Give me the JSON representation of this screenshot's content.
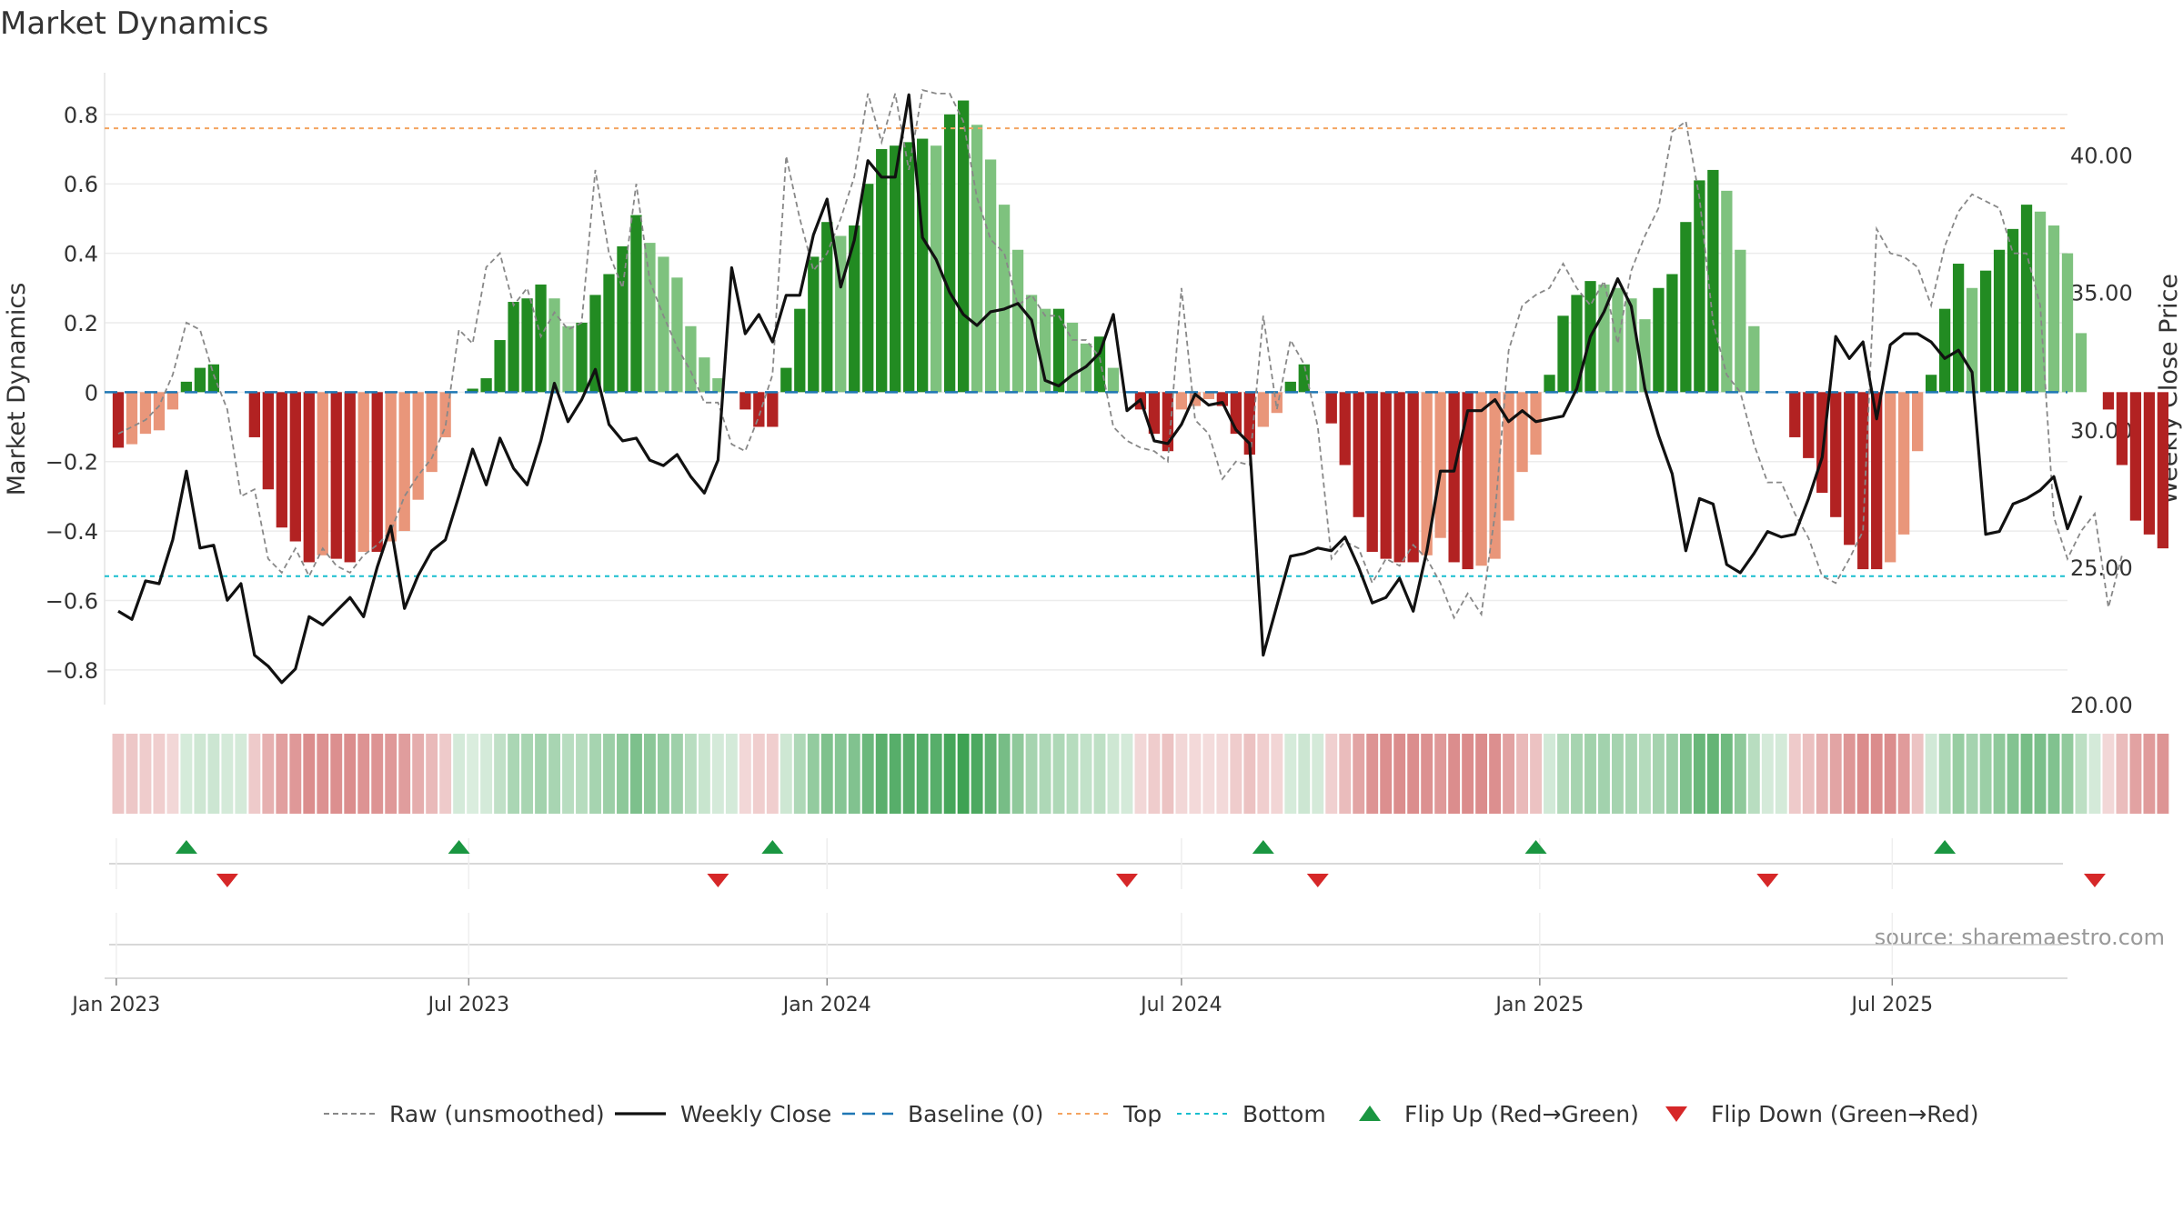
{
  "chart_data": {
    "type": "bar",
    "title": "Market Dynamics",
    "ylabel": "Market Dynamics",
    "y2label": "Weekly Close Price",
    "source_text": "source: sharemaestro.com",
    "ylim": [
      -0.9,
      0.92
    ],
    "y2lim": [
      20.0,
      43.0
    ],
    "yticks": [
      "0.8",
      "0.6",
      "0.4",
      "0.2",
      "0",
      "−0.2",
      "−0.4",
      "−0.6",
      "−0.8"
    ],
    "ytick_values": [
      0.8,
      0.6,
      0.4,
      0.2,
      0,
      -0.2,
      -0.4,
      -0.6,
      -0.8
    ],
    "y2ticks": [
      "40.00",
      "35.00",
      "30.00",
      "25.00",
      "20.00"
    ],
    "y2tick_values": [
      40,
      35,
      30,
      25,
      20
    ],
    "x_start": "2023-01-02",
    "x_range": [
      "2022-12-26",
      "2025-09-29"
    ],
    "xticks": [
      "Jan 2023",
      "Jul 2023",
      "Jan 2024",
      "Jul 2024",
      "Jan 2025",
      "Jul 2025"
    ],
    "xtick_dates": [
      "2023-01-01",
      "2023-07-01",
      "2024-01-01",
      "2024-07-01",
      "2025-01-01",
      "2025-07-01"
    ],
    "top_level": 0.76,
    "bottom_level": -0.53,
    "baseline": 0,
    "grid": true,
    "legend_position": "bottom",
    "colors": {
      "strong_green": "#228b22",
      "light_green": "#7ec27e",
      "strong_red": "#b22222",
      "light_red": "#e9967a",
      "close": "#111111",
      "raw": "#888888",
      "baseline": "#1f77b4",
      "top": "#f4a460",
      "bottom": "#17becf",
      "flip_up": "#1a9641",
      "flip_down": "#d62728"
    },
    "bar_values": [
      -0.16,
      -0.15,
      -0.12,
      -0.11,
      -0.05,
      0.03,
      0.07,
      0.08,
      0,
      0,
      -0.13,
      -0.28,
      -0.39,
      -0.43,
      -0.49,
      -0.47,
      -0.48,
      -0.49,
      -0.46,
      -0.46,
      -0.43,
      -0.4,
      -0.31,
      -0.23,
      -0.13,
      0,
      0.01,
      0.04,
      0.15,
      0.26,
      0.27,
      0.31,
      0.27,
      0.19,
      0.2,
      0.28,
      0.34,
      0.42,
      0.51,
      0.43,
      0.39,
      0.33,
      0.19,
      0.1,
      0.04,
      0,
      -0.05,
      -0.1,
      -0.1,
      0.07,
      0.24,
      0.39,
      0.49,
      0.45,
      0.48,
      0.6,
      0.7,
      0.71,
      0.72,
      0.73,
      0.71,
      0.8,
      0.84,
      0.77,
      0.67,
      0.54,
      0.41,
      0.28,
      0.24,
      0.24,
      0.2,
      0.14,
      0.16,
      0.07,
      0,
      -0.05,
      -0.12,
      -0.17,
      -0.05,
      -0.04,
      -0.02,
      -0.04,
      -0.12,
      -0.18,
      -0.1,
      -0.06,
      0.03,
      0.08,
      0,
      -0.09,
      -0.21,
      -0.36,
      -0.46,
      -0.48,
      -0.49,
      -0.49,
      -0.47,
      -0.42,
      -0.49,
      -0.51,
      -0.5,
      -0.48,
      -0.37,
      -0.23,
      -0.18,
      0.05,
      0.22,
      0.28,
      0.32,
      0.31,
      0.3,
      0.27,
      0.21,
      0.3,
      0.34,
      0.49,
      0.61,
      0.64,
      0.58,
      0.41,
      0.19,
      0,
      0,
      -0.13,
      -0.19,
      -0.29,
      -0.36,
      -0.44,
      -0.51,
      -0.51,
      -0.49,
      -0.41,
      -0.17,
      0.05,
      0.24,
      0.37,
      0.3,
      0.35,
      0.41,
      0.47,
      0.54,
      0.52,
      0.48,
      0.4,
      0.17,
      0,
      -0.05,
      -0.21,
      -0.37,
      -0.41,
      -0.45
    ],
    "raw_values": [
      -0.12,
      -0.1,
      -0.08,
      -0.04,
      0.05,
      0.2,
      0.18,
      0.05,
      -0.05,
      -0.3,
      -0.28,
      -0.48,
      -0.52,
      -0.45,
      -0.53,
      -0.45,
      -0.5,
      -0.52,
      -0.47,
      -0.44,
      -0.4,
      -0.3,
      -0.24,
      -0.19,
      -0.1,
      0.18,
      0.14,
      0.36,
      0.4,
      0.25,
      0.3,
      0.16,
      0.23,
      0.18,
      0.2,
      0.64,
      0.4,
      0.3,
      0.6,
      0.32,
      0.22,
      0.13,
      0.06,
      -0.03,
      -0.03,
      -0.15,
      -0.17,
      -0.07,
      0.05,
      0.68,
      0.5,
      0.35,
      0.4,
      0.5,
      0.62,
      0.86,
      0.72,
      0.86,
      0.64,
      0.87,
      0.86,
      0.86,
      0.78,
      0.56,
      0.44,
      0.4,
      0.25,
      0.28,
      0.22,
      0.22,
      0.15,
      0.15,
      0.1,
      -0.1,
      -0.14,
      -0.16,
      -0.17,
      -0.2,
      0.3,
      -0.08,
      -0.12,
      -0.25,
      -0.2,
      -0.21,
      0.22,
      -0.05,
      0.15,
      0.08,
      -0.1,
      -0.48,
      -0.43,
      -0.45,
      -0.55,
      -0.48,
      -0.5,
      -0.44,
      -0.48,
      -0.55,
      -0.65,
      -0.58,
      -0.64,
      -0.35,
      0.12,
      0.25,
      0.28,
      0.3,
      0.37,
      0.3,
      0.25,
      0.32,
      0.14,
      0.35,
      0.45,
      0.53,
      0.75,
      0.78,
      0.56,
      0.2,
      0.05,
      0,
      -0.15,
      -0.26,
      -0.26,
      -0.35,
      -0.42,
      -0.53,
      -0.55,
      -0.48,
      -0.4,
      0.47,
      0.4,
      0.39,
      0.36,
      0.25,
      0.42,
      0.52,
      0.57,
      0.55,
      0.53,
      0.4,
      0.4,
      0.25,
      -0.36,
      -0.48,
      -0.4,
      -0.35,
      -0.62,
      -0.47
    ],
    "close_values": [
      23.4,
      23.1,
      24.5,
      24.4,
      26.0,
      28.5,
      25.7,
      25.8,
      23.8,
      24.4,
      21.8,
      21.4,
      20.8,
      21.3,
      23.2,
      22.9,
      23.4,
      23.9,
      23.2,
      25.0,
      26.5,
      23.5,
      24.7,
      25.6,
      26.0,
      27.6,
      29.3,
      28.0,
      29.7,
      28.6,
      28.0,
      29.6,
      31.7,
      30.3,
      31.1,
      32.2,
      30.2,
      29.6,
      29.7,
      28.9,
      28.7,
      29.1,
      28.3,
      27.7,
      28.9,
      35.9,
      33.5,
      34.2,
      33.2,
      34.9,
      34.9,
      37.1,
      38.4,
      35.2,
      36.9,
      39.8,
      39.2,
      39.2,
      42.2,
      37.0,
      36.2,
      35.0,
      34.2,
      33.8,
      34.3,
      34.4,
      34.6,
      34.0,
      31.8,
      31.6,
      32.0,
      32.3,
      32.8,
      34.2,
      30.7,
      31.1,
      29.6,
      29.5,
      30.2,
      31.3,
      30.9,
      31.0,
      30.0,
      29.5,
      21.8,
      23.6,
      25.4,
      25.5,
      25.7,
      25.6,
      26.1,
      25.0,
      23.7,
      23.9,
      24.6,
      23.4,
      25.6,
      28.5,
      28.5,
      30.7,
      30.7,
      31.1,
      30.3,
      30.7,
      30.3,
      30.4,
      30.5,
      31.5,
      33.4,
      34.3,
      35.5,
      34.5,
      31.5,
      29.8,
      28.4,
      25.6,
      27.5,
      27.3,
      25.1,
      24.8,
      25.5,
      26.3,
      26.1,
      26.2,
      27.5,
      29.0,
      33.4,
      32.6,
      33.2,
      30.4,
      33.1,
      33.5,
      33.5,
      33.2,
      32.6,
      32.9,
      32.1,
      26.2,
      26.3,
      27.3,
      27.5,
      27.8,
      28.3,
      26.4,
      27.6
    ],
    "flip_up_indices": [
      5,
      25,
      48,
      84,
      104,
      134
    ],
    "flip_down_indices": [
      8,
      44,
      74,
      88,
      121,
      145
    ],
    "legend": [
      {
        "label": "Raw (unsmoothed)",
        "style": "dashed-gray"
      },
      {
        "label": "Weekly Close",
        "style": "solid-black"
      },
      {
        "label": "Baseline (0)",
        "style": "dashed-blue"
      },
      {
        "label": "Top",
        "style": "dotted-orange"
      },
      {
        "label": "Bottom",
        "style": "dotted-cyan"
      },
      {
        "label": "Flip Up (Red→Green)",
        "style": "triangle-up-green"
      },
      {
        "label": "Flip Down (Green→Red)",
        "style": "triangle-down-red"
      }
    ]
  }
}
